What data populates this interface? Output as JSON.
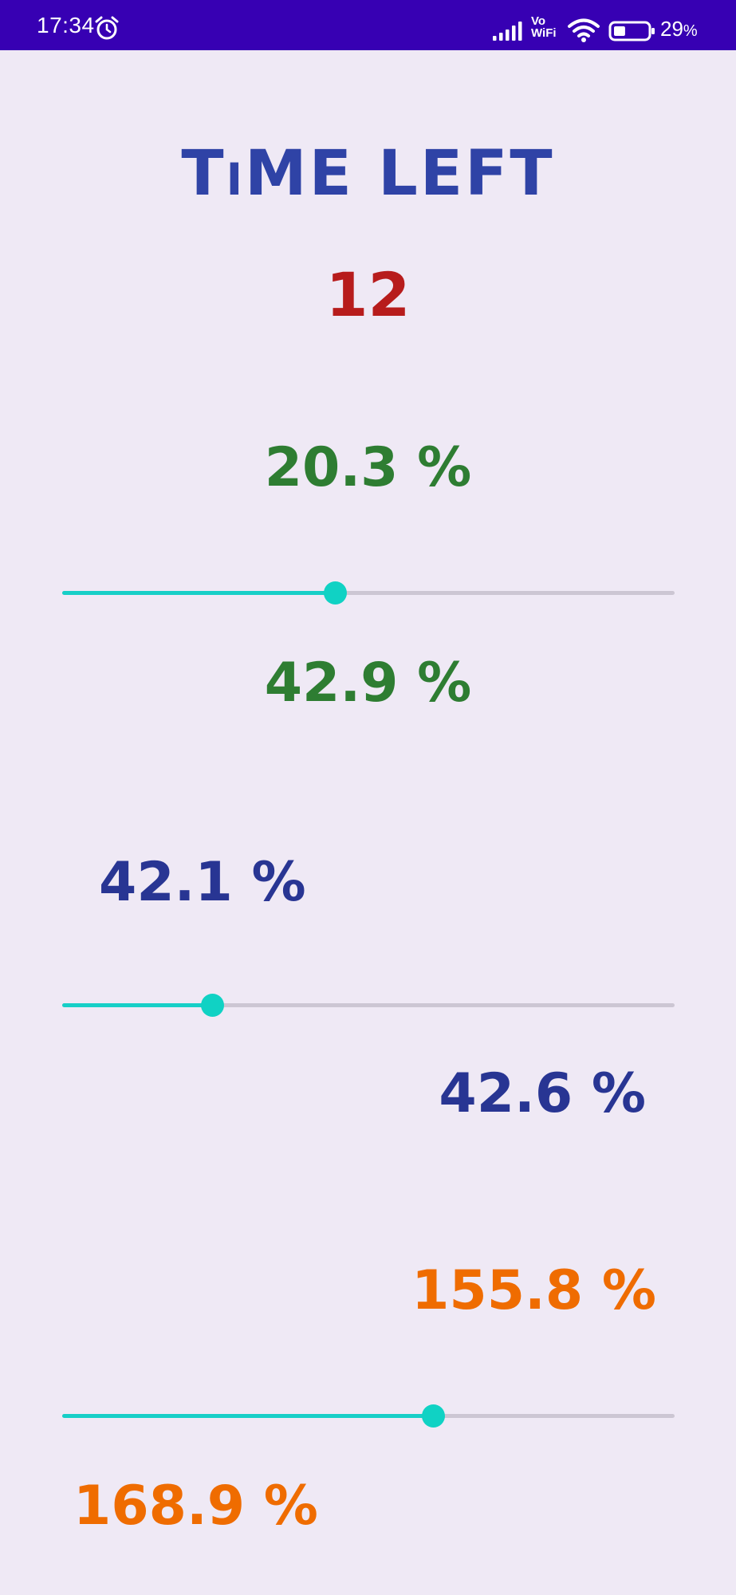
{
  "status_bar": {
    "time": "17:34",
    "vo_label": "Vo",
    "wifi_label": "WiFi",
    "battery_percent": "29",
    "battery_percent_sign": "%",
    "battery_level": 0.29,
    "icons": [
      "alarm-icon",
      "signal-icon",
      "wifi-icon",
      "battery-icon"
    ]
  },
  "title": "TiME LEFT",
  "timer_value": "12",
  "colors": {
    "background": "#EFE9F5",
    "status_bar": "#3700B3",
    "title": "#2F43A6",
    "timer": "#B71C1C",
    "green": "#2E7D32",
    "blue": "#283593",
    "orange": "#EF6C00",
    "slider_active": "#17CFC7",
    "slider_inactive": "#CCC6D3"
  },
  "groups": [
    {
      "top_value": "20.3 %",
      "bottom_value": "42.9 %",
      "slider_progress": 0.445
    },
    {
      "top_value": "42.1 %",
      "bottom_value": "42.6 %",
      "slider_progress": 0.245
    },
    {
      "top_value": "155.8 %",
      "bottom_value": "168.9 %",
      "slider_progress": 0.605
    }
  ]
}
